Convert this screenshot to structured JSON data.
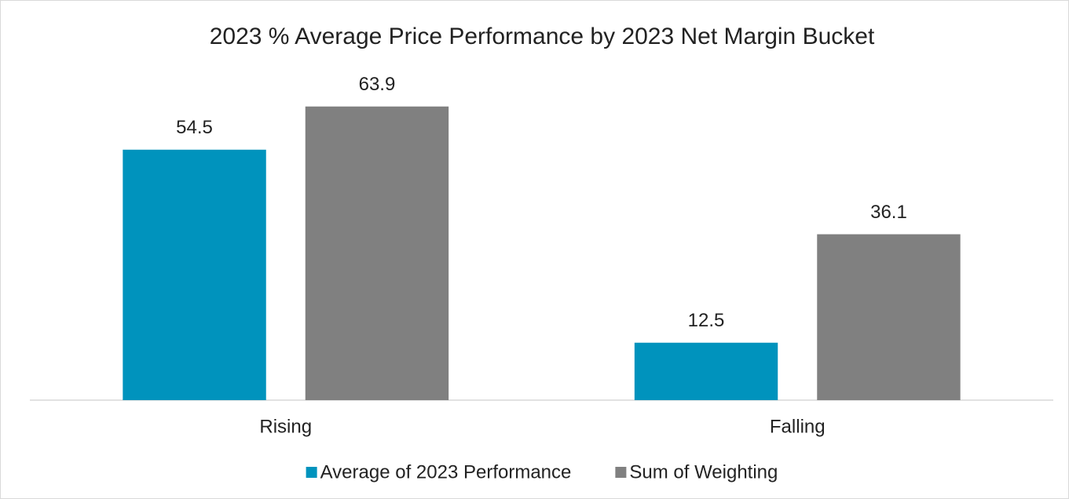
{
  "chart_data": {
    "type": "bar",
    "title": "2023 % Average Price Performance by 2023 Net Margin Bucket",
    "categories": [
      "Rising",
      "Falling"
    ],
    "series": [
      {
        "name": "Average of 2023 Performance",
        "color": "#0093bd",
        "values": [
          54.5,
          12.5
        ]
      },
      {
        "name": "Sum of Weighting",
        "color": "#808080",
        "values": [
          63.9,
          36.1
        ]
      }
    ],
    "ylim": [
      0,
      70
    ],
    "legend": "bottom"
  }
}
